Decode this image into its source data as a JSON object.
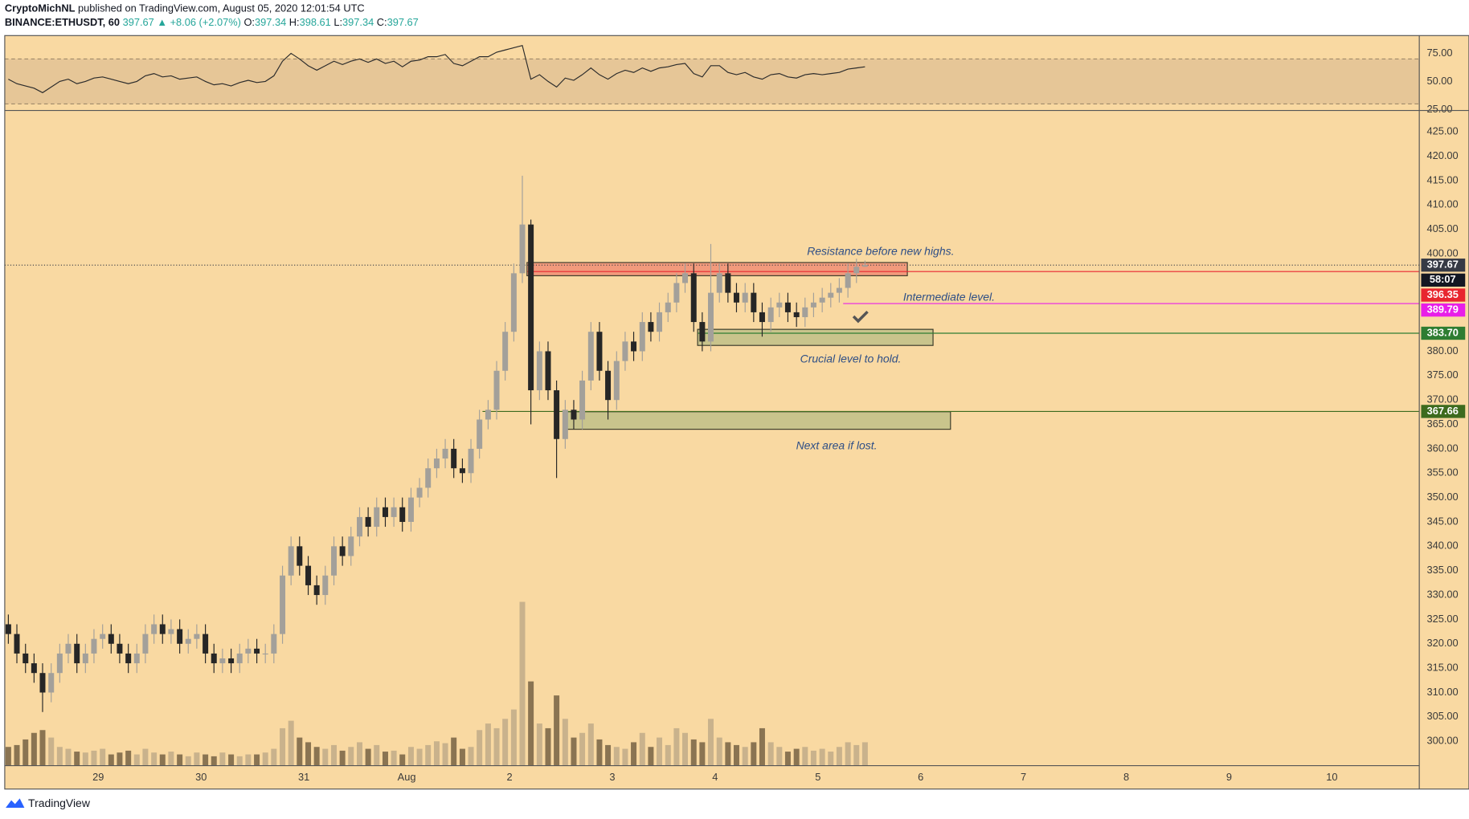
{
  "header": {
    "author": "CryptoMichNL",
    "published": "published on TradingView.com, August 05, 2020 12:01:54 UTC",
    "symbol": "BINANCE:ETHUSDT, 60",
    "last": "397.67",
    "change": "▲ +8.06 (+2.07%)",
    "ohlc": [
      {
        "label": "O:",
        "value": "397.34"
      },
      {
        "label": "H:",
        "value": "398.61"
      },
      {
        "label": "L:",
        "value": "397.34"
      },
      {
        "label": "C:",
        "value": "397.67"
      }
    ]
  },
  "footer": {
    "brand": "TradingView"
  },
  "chart_data": {
    "type": "candlestick",
    "x": [
      28.125,
      28.208,
      28.292,
      28.375,
      28.458,
      28.542,
      28.625,
      28.708,
      28.792,
      28.875,
      28.958,
      29.042,
      29.125,
      29.208,
      29.292,
      29.375,
      29.458,
      29.542,
      29.625,
      29.708,
      29.792,
      29.875,
      29.958,
      30.042,
      30.125,
      30.208,
      30.292,
      30.375,
      30.458,
      30.542,
      30.625,
      30.708,
      30.792,
      30.875,
      30.958,
      31.042,
      31.125,
      31.208,
      31.292,
      31.375,
      31.458,
      31.542,
      31.625,
      31.708,
      31.792,
      31.875,
      31.958,
      32.042,
      32.125,
      32.208,
      32.292,
      32.375,
      32.458,
      32.542,
      32.625,
      32.708,
      32.792,
      32.875,
      32.958,
      33.042,
      33.125,
      33.208,
      33.292,
      33.375,
      33.458,
      33.542,
      33.625,
      33.708,
      33.792,
      33.875,
      33.958,
      34.042,
      34.125,
      34.208,
      34.292,
      34.375,
      34.458,
      34.542,
      34.625,
      34.708,
      34.792,
      34.875,
      34.958,
      35.042,
      35.125,
      35.208,
      35.292,
      35.375,
      35.458,
      35.542,
      35.625,
      35.708,
      35.792,
      35.875,
      35.958,
      36.042,
      36.125,
      36.208,
      36.292,
      36.375,
      36.458
    ],
    "open": [
      324,
      322,
      318,
      316,
      314,
      310,
      314,
      318,
      320,
      316,
      318,
      321,
      322,
      320,
      318,
      316,
      318,
      322,
      324,
      322,
      323,
      320,
      321,
      322,
      318,
      316,
      317,
      316,
      318,
      319,
      318,
      318,
      322,
      334,
      340,
      336,
      332,
      330,
      334,
      340,
      338,
      342,
      346,
      344,
      348,
      346,
      348,
      345,
      350,
      352,
      356,
      358,
      360,
      356,
      355,
      360,
      366,
      368,
      376,
      384,
      396,
      406,
      372,
      380,
      372,
      362,
      368,
      366,
      374,
      384,
      376,
      370,
      378,
      382,
      380,
      386,
      384,
      388,
      390,
      394,
      396,
      386,
      382,
      392,
      396,
      392,
      390,
      392,
      388,
      386,
      389,
      390,
      388,
      387,
      389,
      390,
      391,
      392,
      393,
      396,
      397.34
    ],
    "high": [
      326,
      324,
      320,
      318,
      316,
      316,
      320,
      322,
      322,
      320,
      323,
      324,
      324,
      322,
      320,
      320,
      324,
      326,
      326,
      325,
      325,
      323,
      324,
      324,
      320,
      319,
      319,
      320,
      321,
      321,
      320,
      324,
      336,
      342,
      342,
      338,
      334,
      336,
      342,
      342,
      344,
      348,
      348,
      350,
      350,
      350,
      350,
      352,
      354,
      358,
      360,
      362,
      362,
      358,
      362,
      368,
      370,
      378,
      386,
      398,
      416,
      407,
      382,
      382,
      374,
      370,
      370,
      376,
      386,
      386,
      378,
      380,
      384,
      384,
      388,
      388,
      390,
      392,
      396,
      398,
      398,
      388,
      402,
      398,
      398,
      394,
      394,
      394,
      390,
      391,
      392,
      392,
      390,
      391,
      392,
      393,
      394,
      395,
      398,
      399,
      398.61
    ],
    "low": [
      320,
      316,
      314,
      312,
      306,
      308,
      312,
      316,
      314,
      314,
      316,
      319,
      318,
      316,
      314,
      314,
      316,
      320,
      320,
      320,
      318,
      318,
      319,
      316,
      314,
      314,
      314,
      314,
      316,
      316,
      316,
      316,
      320,
      332,
      334,
      330,
      328,
      328,
      332,
      336,
      336,
      340,
      342,
      342,
      344,
      344,
      343,
      343,
      348,
      350,
      354,
      356,
      354,
      353,
      353,
      358,
      364,
      366,
      374,
      382,
      394,
      365,
      370,
      370,
      354,
      360,
      364,
      364,
      372,
      374,
      366,
      368,
      376,
      378,
      378,
      382,
      382,
      386,
      388,
      392,
      384,
      380,
      380,
      390,
      390,
      388,
      388,
      386,
      383,
      384,
      387,
      386,
      385,
      385,
      387,
      388,
      389,
      390,
      391,
      394,
      397.34
    ],
    "close": [
      322,
      318,
      316,
      314,
      310,
      314,
      318,
      320,
      316,
      318,
      321,
      322,
      320,
      318,
      316,
      318,
      322,
      324,
      322,
      323,
      320,
      321,
      322,
      318,
      316,
      317,
      316,
      318,
      319,
      318,
      318,
      322,
      334,
      340,
      336,
      332,
      330,
      334,
      340,
      338,
      342,
      346,
      344,
      348,
      346,
      348,
      345,
      350,
      352,
      356,
      358,
      360,
      356,
      355,
      360,
      366,
      368,
      376,
      384,
      396,
      406,
      372,
      380,
      372,
      362,
      368,
      366,
      374,
      384,
      376,
      370,
      378,
      382,
      380,
      386,
      384,
      388,
      390,
      394,
      396,
      386,
      382,
      392,
      396,
      392,
      390,
      392,
      388,
      386,
      389,
      390,
      388,
      387,
      389,
      390,
      391,
      392,
      393,
      396,
      397.34,
      397.67
    ],
    "volume": [
      20,
      22,
      28,
      35,
      38,
      30,
      20,
      18,
      15,
      14,
      16,
      18,
      12,
      14,
      16,
      12,
      18,
      14,
      12,
      15,
      12,
      10,
      14,
      12,
      10,
      14,
      12,
      10,
      12,
      12,
      14,
      18,
      40,
      48,
      30,
      25,
      20,
      18,
      22,
      16,
      20,
      25,
      18,
      22,
      15,
      16,
      12,
      20,
      18,
      22,
      26,
      24,
      30,
      18,
      20,
      38,
      45,
      40,
      50,
      60,
      175,
      90,
      45,
      40,
      75,
      50,
      30,
      35,
      45,
      28,
      22,
      20,
      18,
      25,
      35,
      20,
      30,
      22,
      40,
      35,
      28,
      25,
      50,
      30,
      25,
      22,
      20,
      25,
      40,
      25,
      20,
      15,
      18,
      20,
      16,
      18,
      15,
      20,
      25,
      22,
      25
    ],
    "rsi": [
      52,
      48,
      46,
      44,
      40,
      45,
      50,
      52,
      48,
      50,
      53,
      54,
      52,
      50,
      48,
      50,
      55,
      57,
      54,
      55,
      52,
      53,
      54,
      50,
      47,
      48,
      46,
      49,
      51,
      49,
      50,
      55,
      68,
      75,
      70,
      64,
      60,
      64,
      68,
      65,
      68,
      70,
      67,
      70,
      66,
      68,
      63,
      68,
      69,
      72,
      72,
      74,
      66,
      64,
      68,
      72,
      72,
      76,
      78,
      80,
      82,
      52,
      56,
      50,
      45,
      53,
      51,
      56,
      62,
      56,
      52,
      57,
      60,
      58,
      62,
      59,
      62,
      63,
      65,
      66,
      57,
      54,
      64,
      64,
      58,
      56,
      58,
      54,
      52,
      56,
      57,
      54,
      53,
      56,
      57,
      56,
      57,
      58,
      61,
      62,
      63
    ],
    "up_color": "#a3a09a",
    "down_color": "#262626",
    "volume_up_color": "#c9b28c",
    "volume_down_color": "#8a7452",
    "rsi_color": "#2b2b2b",
    "rsi_band": [
      30,
      70
    ],
    "rsi_band_color": "#e6c697",
    "background": "#f9d9a2",
    "xlim": [
      28.09,
      41.85
    ],
    "xticks": [
      29,
      30,
      31,
      {
        "value": 32,
        "label": "Aug"
      },
      {
        "value": 33,
        "label": "2"
      },
      {
        "value": 34,
        "label": "3"
      },
      {
        "value": 35,
        "label": "4"
      },
      {
        "value": 36,
        "label": "5"
      },
      {
        "value": 37,
        "label": "6"
      },
      {
        "value": 38,
        "label": "7"
      },
      {
        "value": 39,
        "label": "8"
      },
      {
        "value": 40,
        "label": "9"
      },
      {
        "value": 41,
        "label": "10"
      }
    ],
    "ylim": [
      295,
      429.4
    ],
    "yticks": [
      {
        "value": 300,
        "label": "300.00"
      },
      {
        "value": 305,
        "label": "305.00"
      },
      {
        "value": 310,
        "label": "310.00"
      },
      {
        "value": 315,
        "label": "315.00"
      },
      {
        "value": 320,
        "label": "320.00"
      },
      {
        "value": 325,
        "label": "325.00"
      },
      {
        "value": 330,
        "label": "330.00"
      },
      {
        "value": 335,
        "label": "335.00"
      },
      {
        "value": 340,
        "label": "340.00"
      },
      {
        "value": 345,
        "label": "345.00"
      },
      {
        "value": 350,
        "label": "350.00"
      },
      {
        "value": 355,
        "label": "355.00"
      },
      {
        "value": 360,
        "label": "360.00"
      },
      {
        "value": 365,
        "label": "365.00"
      },
      {
        "value": 370,
        "label": "370.00"
      },
      {
        "value": 375,
        "label": "375.00"
      },
      {
        "value": 380,
        "label": "380.00"
      },
      {
        "value": 400,
        "label": "400.00"
      },
      {
        "value": 405,
        "label": "405.00"
      },
      {
        "value": 410,
        "label": "410.00"
      },
      {
        "value": 415,
        "label": "415.00"
      },
      {
        "value": 420,
        "label": "420.00"
      },
      {
        "value": 425,
        "label": "425.00"
      }
    ],
    "rsi_ylim": [
      24.2,
      90.8
    ],
    "rsi_yticks": [
      {
        "value": 75,
        "label": "75.00"
      },
      {
        "value": 50,
        "label": "50.00"
      },
      {
        "value": 25,
        "label": "25.00"
      }
    ],
    "last_price": {
      "value": 397.67,
      "label": "397.67",
      "countdown": "58:07",
      "color": "#363a45"
    },
    "levels": [
      {
        "value": 396.35,
        "label": "396.35",
        "color": "#e8262f"
      },
      {
        "value": 389.79,
        "label": "389.79",
        "color": "#e81ee8"
      },
      {
        "value": 383.7,
        "label": "383.70",
        "color": "#2e7d32"
      },
      {
        "value": 367.66,
        "label": "367.66",
        "color": "#3d6b1e"
      }
    ],
    "zones": [
      {
        "x": [
          33.17,
          36.87
        ],
        "y": [
          395.5,
          398.2
        ],
        "color": "#f29a7c"
      },
      {
        "x": [
          34.83,
          37.12
        ],
        "y": [
          381.2,
          384.5
        ],
        "color": "#c9c48c"
      },
      {
        "x": [
          33.55,
          37.29
        ],
        "y": [
          364,
          367.6
        ],
        "color": "#c9c48c"
      }
    ],
    "annotations": [
      "Resistance before new highs.",
      "Intermediate level.",
      "Crucial level to hold.",
      "Next area if lost."
    ]
  }
}
